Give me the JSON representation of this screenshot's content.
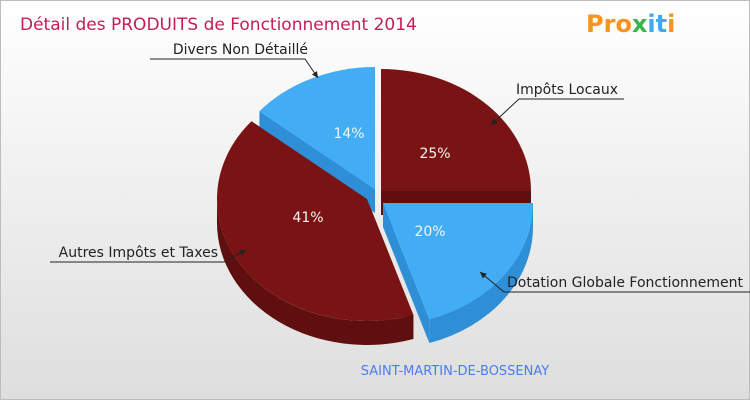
{
  "logo": {
    "letters": [
      "P",
      "r",
      "o",
      "x",
      "i",
      "t",
      "i"
    ],
    "colors": [
      "#f7931e",
      "#f7931e",
      "#f7931e",
      "#39b54a",
      "#3fa9f5",
      "#3fa9f5",
      "#f7931e"
    ]
  },
  "chart_data": {
    "type": "pie",
    "title": "Détail des PRODUITS de Fonctionnement 2014",
    "subtitle": "SAINT-MARTIN-DE-BOSSENAY",
    "slices": [
      {
        "label": "Impôts Locaux",
        "percent_label": "25%",
        "value": 25,
        "color": "#7a1414",
        "side": "#5f0f0f"
      },
      {
        "label": "Dotation Globale Fonctionnement",
        "percent_label": "20%",
        "value": 20,
        "color": "#42adf4",
        "side": "#2f8fd6"
      },
      {
        "label": "Autres Impôts et Taxes",
        "percent_label": "41%",
        "value": 41,
        "color": "#7a1414",
        "side": "#5f0f0f"
      },
      {
        "label": "Divers Non Détaillé",
        "percent_label": "14%",
        "value": 14,
        "color": "#42adf4",
        "side": "#2f8fd6"
      }
    ]
  }
}
